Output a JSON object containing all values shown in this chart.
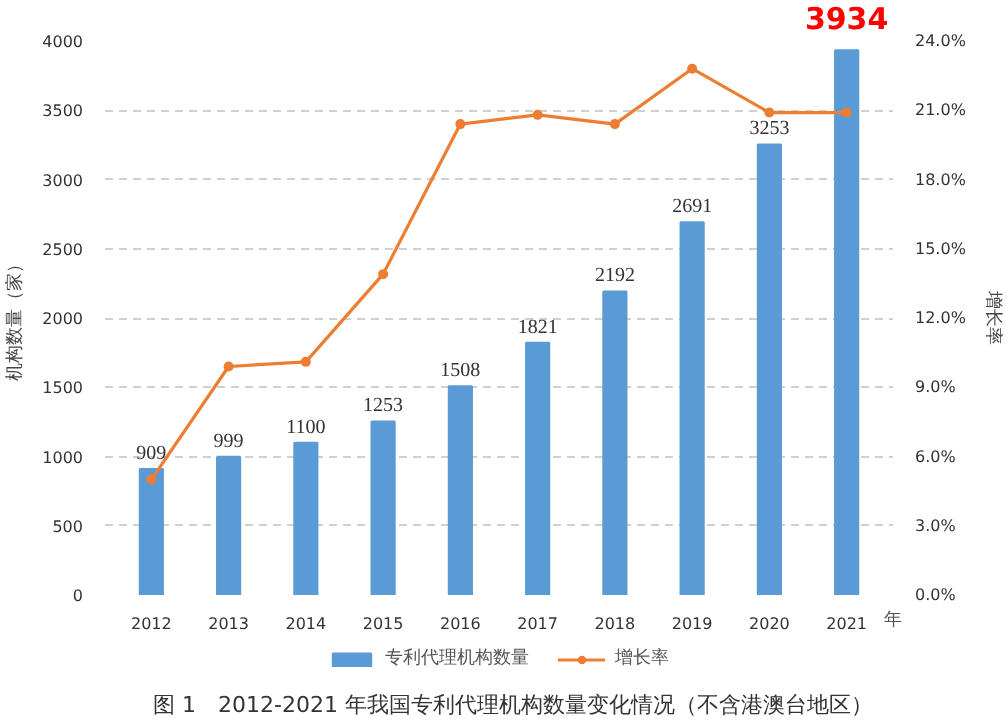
{
  "chart_data": {
    "type": "bar",
    "title": "图 1　2012-2021 年我国专利代理机构数量变化情况（不含港澳台地区）",
    "xlabel": "年",
    "ylabel": "机构数量（家）",
    "y2label": "增长率",
    "categories": [
      "2012",
      "2013",
      "2014",
      "2015",
      "2016",
      "2017",
      "2018",
      "2019",
      "2020",
      "2021"
    ],
    "series": [
      {
        "name": "专利代理机构数量",
        "color": "#5b9bd5",
        "values": [
          909,
          999,
          1100,
          1253,
          1508,
          1821,
          2192,
          2691,
          3253,
          3934
        ],
        "data_labels": true
      },
      {
        "name": "增长率",
        "type": "line",
        "axis": "y2",
        "color": "#ed7d31",
        "marker": "circle",
        "values": [
          5.0,
          9.9,
          10.1,
          13.9,
          20.4,
          20.8,
          20.4,
          22.8,
          20.9,
          20.9
        ]
      }
    ],
    "ylim": [
      0,
      4000
    ],
    "yticks": [
      0,
      500,
      1000,
      1500,
      2000,
      2500,
      3000,
      3500,
      4000
    ],
    "y2lim": [
      0,
      24
    ],
    "y2ticks": [
      {
        "value": 0,
        "label": "0.0%"
      },
      {
        "value": 3,
        "label": "3.0%"
      },
      {
        "value": 6,
        "label": "6.0%"
      },
      {
        "value": 9,
        "label": "9.0%"
      },
      {
        "value": 12,
        "label": "12.0%"
      },
      {
        "value": 15,
        "label": "15.0%"
      },
      {
        "value": 18,
        "label": "18.0%"
      },
      {
        "value": 21,
        "label": "21.0%"
      },
      {
        "value": 24,
        "label": "24.0%"
      }
    ],
    "grid": "y",
    "legend": "bottom"
  }
}
